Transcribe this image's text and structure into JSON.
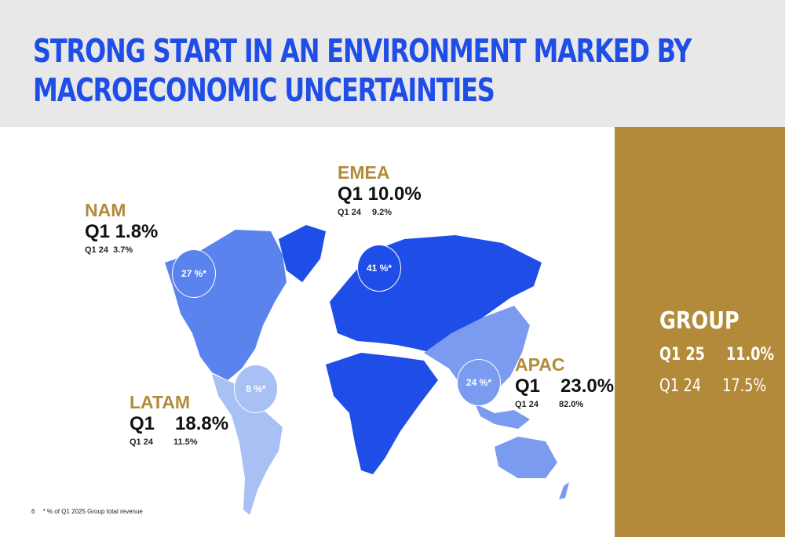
{
  "title": {
    "line1": "STRONG START IN AN ENVIRONMENT MARKED BY",
    "line2": "MACROECONOMIC UNCERTAINTIES"
  },
  "regions": {
    "nam": {
      "name": "NAM",
      "current": "Q1 1.8%",
      "previous": "Q1 24  3.7%",
      "share": "27 %*"
    },
    "emea": {
      "name": "EMEA",
      "current": "Q1 10.0%",
      "previous_label": "Q1 24",
      "previous_value": "9.2%",
      "share": "41 %*"
    },
    "latam": {
      "name": "LATAM",
      "current_label": "Q1",
      "current_value": "18.8%",
      "previous_label": "Q1 24",
      "previous_value": "11.5%",
      "share": "8 %*"
    },
    "apac": {
      "name": "APAC",
      "current_label": "Q1",
      "current_value": "23.0%",
      "previous_label": "Q1 24",
      "previous_value": "82.0%",
      "share": "24 %*"
    }
  },
  "group": {
    "name": "GROUP",
    "current_label": "Q1 25",
    "current_value": "11.0%",
    "previous_label": "Q1 24",
    "previous_value": "17.5%"
  },
  "footnote": {
    "page": "6",
    "text": "* % of Q1 2025 Group total revenue"
  },
  "colors": {
    "title": "#1f4de8",
    "gold": "#b38a3a",
    "header_bg": "#e8e8e8",
    "emea_map": "#1f4de8",
    "nam_map": "#5a83ee",
    "apac_map": "#7a9bf0",
    "latam_map": "#a9c0f5"
  }
}
